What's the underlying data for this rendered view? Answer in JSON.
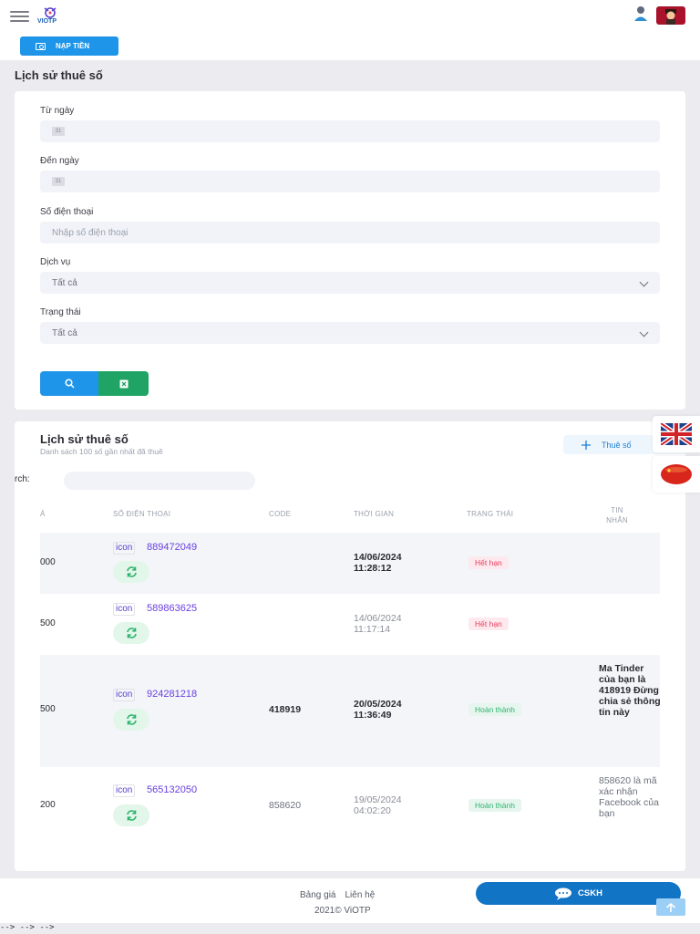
{
  "header": {
    "logo_text": "VIOTP",
    "topup_label": "NẠP TIỀN"
  },
  "page_title": "Lịch sử thuê số",
  "filters": {
    "from_label": "Từ ngày",
    "to_label": "Đến ngày",
    "calendar_glyph": "31",
    "phone_label": "Số điện thoại",
    "phone_placeholder": "Nhập số điện thoại",
    "service_label": "Dịch vụ",
    "service_value": "Tất cả",
    "status_label": "Trạng thái",
    "status_value": "Tất cả"
  },
  "table_card": {
    "title": "Lịch sử thuê số",
    "subtitle": "Danh sách 100 số gần nhất đã thuê",
    "rent_button": "Thuê số",
    "search_label": "rch:",
    "headers": [
      "Á",
      "SỐ ĐIỆN THOẠI",
      "CODE",
      "THỜI GIAN",
      "TRẠNG THÁI",
      "TIN NHẮN"
    ],
    "rows": [
      {
        "price": "000",
        "icon_tag": "icon",
        "phone": "889472049",
        "code": "",
        "date": "14/06/2024",
        "time": "11:28:12",
        "status": "Hết hạn",
        "message": ""
      },
      {
        "price": "500",
        "icon_tag": "icon",
        "phone": "589863625",
        "code": "",
        "date": "14/06/2024",
        "time": "11:17:14",
        "status": "Hết hạn",
        "message": ""
      },
      {
        "price": "500",
        "icon_tag": "icon",
        "phone": "924281218",
        "code": "418919",
        "date": "20/05/2024",
        "time": "11:36:49",
        "status": "Hoàn thành",
        "message": "Ma Tinder của bạn là 418919 Đừng chia sẻ thông tin này"
      },
      {
        "price": "200",
        "icon_tag": "icon",
        "phone": "565132050",
        "code": "858620",
        "date": "19/05/2024",
        "time": "04:02:20",
        "status": "Hoàn thành",
        "message": "858620 là mã xác nhận Facebook của bạn"
      }
    ]
  },
  "footer": {
    "link_pricing": "Bảng giá",
    "link_contact": "Liên hệ",
    "copyright": "2021© ViOTP",
    "support_label": "CSKH"
  },
  "stray_text": "--> --> -->",
  "colors": {
    "primary": "#1e95e8",
    "success": "#1fa466",
    "danger": "#e4405f",
    "phone": "#6a3fe0"
  }
}
